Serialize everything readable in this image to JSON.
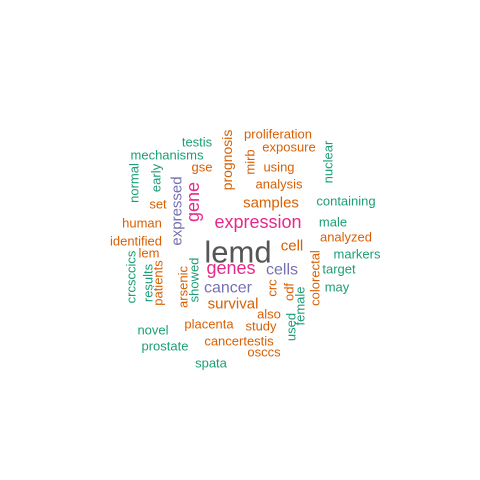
{
  "word_cloud": {
    "colors": {
      "dark_gray": "#555555",
      "magenta": "#e7298a",
      "purple": "#7570b3",
      "orange": "#d95f02",
      "teal": "#1b9e77"
    },
    "words": [
      {
        "text": "lemd",
        "color": "dark_gray",
        "rank": 1
      },
      {
        "text": "expression",
        "color": "magenta",
        "rank": 2
      },
      {
        "text": "genes",
        "color": "magenta",
        "rank": 2
      },
      {
        "text": "gene",
        "color": "magenta",
        "rank": 2
      },
      {
        "text": "cancer",
        "color": "purple",
        "rank": 3
      },
      {
        "text": "cells",
        "color": "purple",
        "rank": 3
      },
      {
        "text": "expressed",
        "color": "purple",
        "rank": 3
      },
      {
        "text": "samples",
        "color": "orange",
        "rank": 4
      },
      {
        "text": "survival",
        "color": "orange",
        "rank": 4
      },
      {
        "text": "cell",
        "color": "orange",
        "rank": 4
      },
      {
        "text": "prognosis",
        "color": "orange",
        "rank": 4
      },
      {
        "text": "proliferation",
        "color": "orange",
        "rank": 5
      },
      {
        "text": "exposure",
        "color": "orange",
        "rank": 5
      },
      {
        "text": "using",
        "color": "orange",
        "rank": 5
      },
      {
        "text": "analysis",
        "color": "orange",
        "rank": 5
      },
      {
        "text": "gse",
        "color": "orange",
        "rank": 5
      },
      {
        "text": "mirb",
        "color": "orange",
        "rank": 5
      },
      {
        "text": "set",
        "color": "orange",
        "rank": 5
      },
      {
        "text": "human",
        "color": "orange",
        "rank": 5
      },
      {
        "text": "identified",
        "color": "orange",
        "rank": 5
      },
      {
        "text": "lem",
        "color": "orange",
        "rank": 5
      },
      {
        "text": "analyzed",
        "color": "orange",
        "rank": 5
      },
      {
        "text": "arsenic",
        "color": "orange",
        "rank": 5
      },
      {
        "text": "patients",
        "color": "orange",
        "rank": 5
      },
      {
        "text": "crc",
        "color": "orange",
        "rank": 5
      },
      {
        "text": "odf",
        "color": "orange",
        "rank": 5
      },
      {
        "text": "colorectal",
        "color": "orange",
        "rank": 5
      },
      {
        "text": "placenta",
        "color": "orange",
        "rank": 5
      },
      {
        "text": "study",
        "color": "orange",
        "rank": 5
      },
      {
        "text": "also",
        "color": "orange",
        "rank": 5
      },
      {
        "text": "cancertestis",
        "color": "orange",
        "rank": 5
      },
      {
        "text": "osccs",
        "color": "orange",
        "rank": 5
      },
      {
        "text": "testis",
        "color": "teal",
        "rank": 6
      },
      {
        "text": "mechanisms",
        "color": "teal",
        "rank": 6
      },
      {
        "text": "normal",
        "color": "teal",
        "rank": 6
      },
      {
        "text": "early",
        "color": "teal",
        "rank": 6
      },
      {
        "text": "nuclear",
        "color": "teal",
        "rank": 6
      },
      {
        "text": "containing",
        "color": "teal",
        "rank": 6
      },
      {
        "text": "male",
        "color": "teal",
        "rank": 6
      },
      {
        "text": "markers",
        "color": "teal",
        "rank": 6
      },
      {
        "text": "target",
        "color": "teal",
        "rank": 6
      },
      {
        "text": "may",
        "color": "teal",
        "rank": 6
      },
      {
        "text": "crcsccics",
        "color": "teal",
        "rank": 6
      },
      {
        "text": "results",
        "color": "teal",
        "rank": 6
      },
      {
        "text": "showed",
        "color": "teal",
        "rank": 6
      },
      {
        "text": "novel",
        "color": "teal",
        "rank": 6
      },
      {
        "text": "prostate",
        "color": "teal",
        "rank": 6
      },
      {
        "text": "spata",
        "color": "teal",
        "rank": 6
      },
      {
        "text": "used",
        "color": "teal",
        "rank": 6
      },
      {
        "text": "female",
        "color": "teal",
        "rank": 6
      }
    ]
  }
}
